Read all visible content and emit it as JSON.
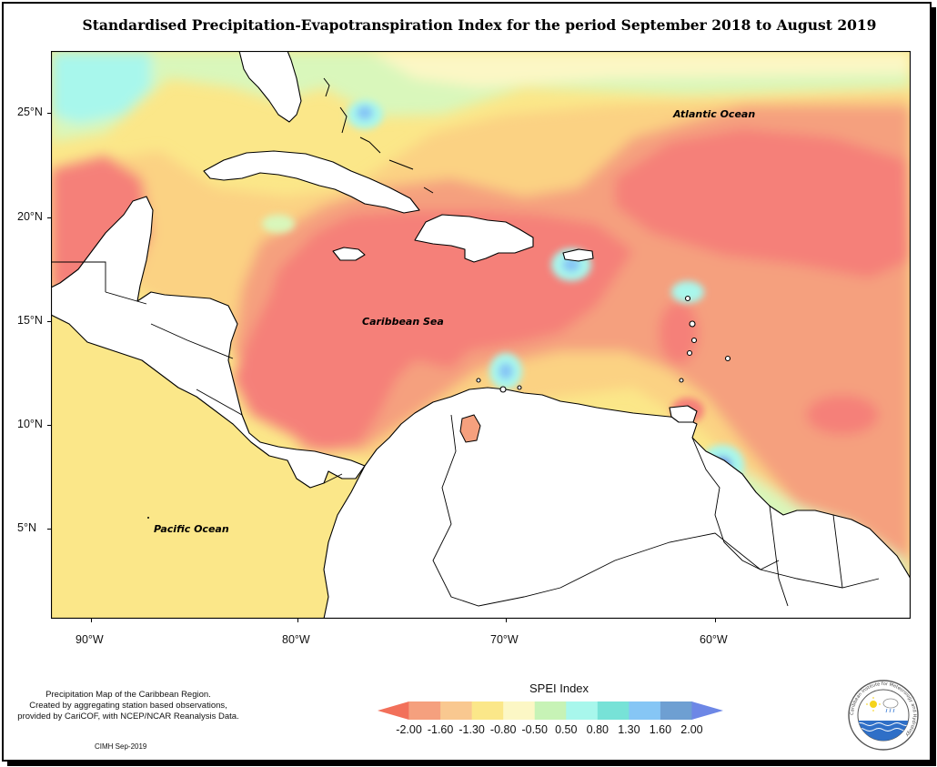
{
  "title": "Standardised Precipitation-Evapotranspiration Index for the period September 2018 to August 2019",
  "labels": {
    "atlantic": "Atlantic Ocean",
    "caribbean": "Caribbean Sea",
    "pacific": "Pacific Ocean"
  },
  "axes": {
    "lat_ticks": [
      "25°N",
      "20°N",
      "15°N",
      "10°N",
      "5°N"
    ],
    "lon_ticks": [
      "90°W",
      "80°W",
      "70°W",
      "60°W"
    ]
  },
  "legend": {
    "title": "SPEI Index",
    "values": [
      "-2.00",
      "-1.60",
      "-1.30",
      "-0.80",
      "-0.50",
      "0.50",
      "0.80",
      "1.30",
      "1.60",
      "2.00"
    ],
    "colors": [
      "#f2705a",
      "#f5a07e",
      "#f9c890",
      "#fbe789",
      "#fcf7c5",
      "#c7f3b6",
      "#a8f7ec",
      "#77e2d7",
      "#86c6f5",
      "#6e9fd2",
      "#6d87e6"
    ]
  },
  "notes": {
    "line1": "Precipitation Map of the Caribbean Region.",
    "line2": "Created by aggregating station based observations,",
    "line3": "provided by CariCOF, with NCEP/NCAR Reanalysis Data.",
    "credit": "CIMH Sep-2019"
  },
  "logo": {
    "abbr": "CIMH",
    "ring_text": "Caribbean Institute for Meteorology and Hydrology"
  },
  "colors": {
    "dry_extreme": "#f58079",
    "dry_strong": "#f5a07e",
    "dry_moderate": "#fbd283",
    "dry_mild": "#fbe789",
    "near_normal": "#fcf7c5",
    "wet_mild": "#d9f7bb",
    "wet_moderate": "#a8f7ec",
    "wet_strong": "#86c6f5",
    "wet_extreme": "#6d87e6",
    "land": "#ffffff"
  }
}
